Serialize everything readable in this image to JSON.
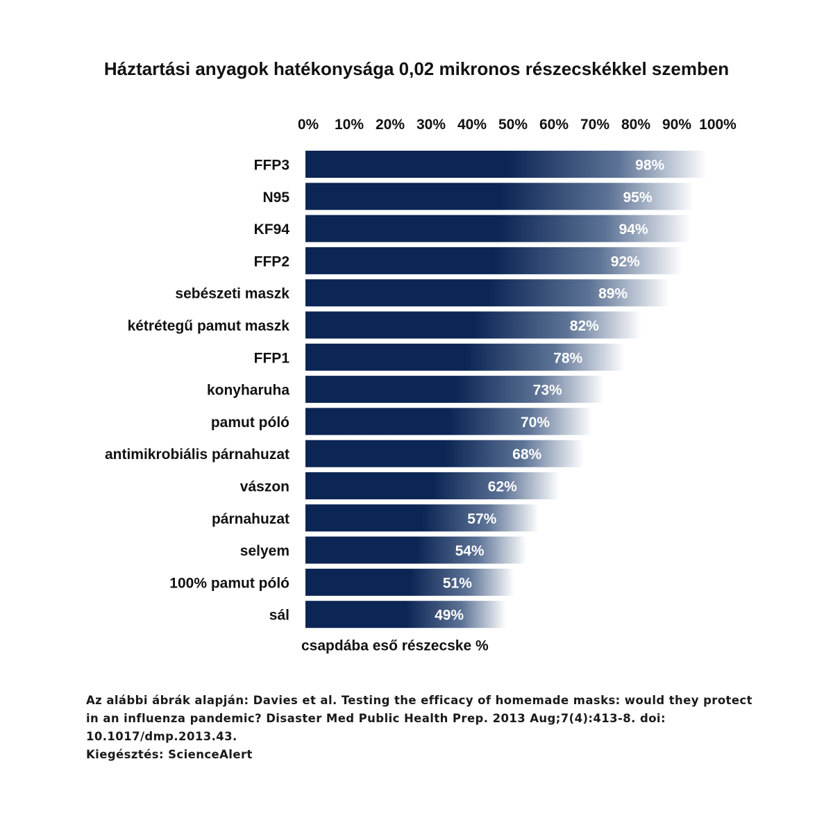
{
  "chart_data": {
    "type": "bar",
    "orientation": "horizontal",
    "title": "Háztartási anyagok hatékonysága 0,02 mikronos részecskékkel szemben",
    "xlabel": "csapdába eső részecske %",
    "ylabel": "",
    "xlim": [
      0,
      100
    ],
    "x_ticks": [
      "0%",
      "10%",
      "20%",
      "30%",
      "40%",
      "50%",
      "60%",
      "70%",
      "80%",
      "90%",
      "100%"
    ],
    "axis_position": "top",
    "grid": false,
    "categories": [
      "FFP3",
      "N95",
      "KF94",
      "FFP2",
      "sebészeti maszk",
      "kétrétegű pamut maszk",
      "FFP1",
      "konyharuha",
      "pamut póló",
      "antimikrobiális párnahuzat",
      "vászon",
      "párnahuzat",
      "selyem",
      "100% pamut póló",
      "sál"
    ],
    "values": [
      98,
      95,
      94,
      92,
      89,
      82,
      78,
      73,
      70,
      68,
      62,
      57,
      54,
      51,
      49
    ],
    "data_labels": [
      "98%",
      "95%",
      "94%",
      "92%",
      "89%",
      "82%",
      "78%",
      "73%",
      "70%",
      "68%",
      "62%",
      "57%",
      "54%",
      "51%",
      "49%"
    ],
    "bar_color": "#0b2554",
    "bar_fade_color": "#ffffff",
    "label_color": "#ffffff",
    "text_color": "#111111"
  },
  "source": {
    "line1": "Az alábbi ábrák alapján: Davies et al. Testing the efficacy of homemade masks: would they protect in an influenza pandemic? Disaster Med Public Health Prep. 2013 Aug;7(4):413-8. doi: 10.1017/dmp.2013.43.",
    "line2": "Kiegésztés: ScienceAlert"
  }
}
